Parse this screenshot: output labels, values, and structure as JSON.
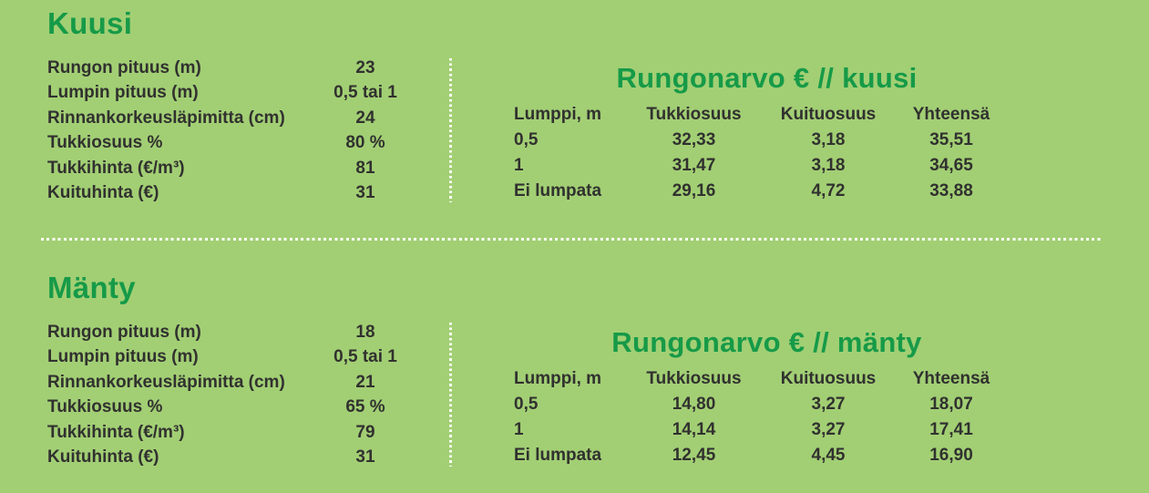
{
  "colors": {
    "background": "#a2cf74",
    "accent_green": "#169a48",
    "text_dark": "#31312f",
    "divider_white": "#ffffff"
  },
  "sections": [
    {
      "title": "Kuusi",
      "params": [
        {
          "label": "Rungon pituus (m)",
          "value": "23"
        },
        {
          "label": "Lumpin pituus (m)",
          "value": "0,5 tai 1"
        },
        {
          "label": "Rinnankorkeusläpimitta (cm)",
          "value": "24"
        },
        {
          "label": "Tukkiosuus %",
          "value": "80 %"
        },
        {
          "label": "Tukkihinta (€/m³)",
          "value": "81"
        },
        {
          "label": "Kuituhinta (€)",
          "value": "31"
        }
      ],
      "table": {
        "title": "Rungonarvo € // kuusi",
        "columns": [
          "Lumppi, m",
          "Tukkiosuus",
          "Kuituosuus",
          "Yhteensä"
        ],
        "rows": [
          [
            "0,5",
            "32,33",
            "3,18",
            "35,51"
          ],
          [
            "1",
            "31,47",
            "3,18",
            "34,65"
          ],
          [
            "Ei lumpata",
            "29,16",
            "4,72",
            "33,88"
          ]
        ]
      }
    },
    {
      "title": "Mänty",
      "params": [
        {
          "label": "Rungon pituus (m)",
          "value": "18"
        },
        {
          "label": "Lumpin pituus (m)",
          "value": "0,5 tai 1"
        },
        {
          "label": "Rinnankorkeusläpimitta (cm)",
          "value": "21"
        },
        {
          "label": "Tukkiosuus %",
          "value": "65 %"
        },
        {
          "label": "Tukkihinta (€/m³)",
          "value": "79"
        },
        {
          "label": "Kuituhinta (€)",
          "value": "31"
        }
      ],
      "table": {
        "title": "Rungonarvo € // mänty",
        "columns": [
          "Lumppi, m",
          "Tukkiosuus",
          "Kuituosuus",
          "Yhteensä"
        ],
        "rows": [
          [
            "0,5",
            "14,80",
            "3,27",
            "18,07"
          ],
          [
            "1",
            "14,14",
            "3,27",
            "17,41"
          ],
          [
            "Ei lumpata",
            "12,45",
            "4,45",
            "16,90"
          ]
        ]
      }
    }
  ]
}
